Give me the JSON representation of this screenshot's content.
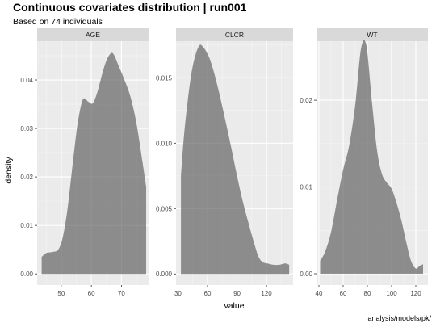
{
  "chart_data": {
    "type": "area",
    "title": "Continuous covariates distribution | run001",
    "subtitle": "Based on 74 individuals",
    "xlabel": "value",
    "ylabel": "density",
    "caption": "analysis/models/pk/",
    "colors": {
      "panel_bg": "#ebebeb",
      "grid_major": "#ffffff",
      "grid_minor": "#f5f5f5",
      "strip_bg": "#d9d9d9",
      "area_fill": "#595959",
      "area_opacity": 0.65
    },
    "facets": [
      {
        "name": "AGE",
        "xlim": [
          42,
          79
        ],
        "ylim": [
          -0.0023,
          0.048
        ],
        "xticks": [
          50,
          60,
          70
        ],
        "xtick_labels": [
          "50",
          "60",
          "70"
        ],
        "yticks": [
          0,
          0.01,
          0.02,
          0.03,
          0.04
        ],
        "ytick_labels": [
          "0.00",
          "0.01",
          "0.02",
          "0.03",
          "0.04"
        ],
        "x": [
          43.5,
          45,
          47,
          49,
          50.5,
          52,
          53.5,
          55,
          56,
          57,
          57.8,
          59,
          60.5,
          62,
          63.5,
          65,
          66.5,
          67.5,
          69,
          71,
          73,
          75,
          77,
          78.2
        ],
        "y": [
          0.0035,
          0.0043,
          0.0045,
          0.005,
          0.0075,
          0.013,
          0.021,
          0.029,
          0.033,
          0.0357,
          0.0362,
          0.0355,
          0.0352,
          0.0375,
          0.041,
          0.044,
          0.0455,
          0.0452,
          0.043,
          0.04,
          0.0365,
          0.031,
          0.023,
          0.018
        ]
      },
      {
        "name": "CLCR",
        "xlim": [
          28,
          147
        ],
        "ylim": [
          -0.00085,
          0.0178
        ],
        "xticks": [
          30,
          60,
          90,
          120
        ],
        "xtick_labels": [
          "30",
          "60",
          "90",
          "120"
        ],
        "yticks": [
          0,
          0.005,
          0.01,
          0.015
        ],
        "ytick_labels": [
          "0.000",
          "0.005",
          "0.010",
          "0.015"
        ],
        "x": [
          33,
          36,
          40,
          44,
          48,
          52,
          55,
          58,
          62,
          67,
          72,
          78,
          84,
          90,
          96,
          102,
          108,
          112,
          116,
          121,
          127,
          133,
          139,
          143
        ],
        "y": [
          0.0075,
          0.0105,
          0.0133,
          0.0155,
          0.0168,
          0.0175,
          0.0174,
          0.0171,
          0.0165,
          0.0153,
          0.0138,
          0.0118,
          0.0097,
          0.0075,
          0.0055,
          0.0038,
          0.0022,
          0.0013,
          0.0009,
          0.0008,
          0.0007,
          0.0007,
          0.0008,
          0.0007
        ]
      },
      {
        "name": "WT",
        "xlim": [
          38,
          130
        ],
        "ylim": [
          -0.0013,
          0.0268
        ],
        "xticks": [
          40,
          60,
          80,
          100,
          120
        ],
        "xtick_labels": [
          "40",
          "60",
          "80",
          "100",
          "120"
        ],
        "yticks": [
          0,
          0.01,
          0.02
        ],
        "ytick_labels": [
          "0.00",
          "0.01",
          "0.02"
        ],
        "x": [
          41,
          45,
          50,
          55,
          60,
          65,
          70,
          74,
          76.5,
          78,
          80,
          84,
          88,
          92,
          96,
          100,
          104,
          108,
          112,
          116,
          120,
          123,
          126
        ],
        "y": [
          0.0015,
          0.0025,
          0.0048,
          0.0085,
          0.012,
          0.0148,
          0.0195,
          0.0252,
          0.0268,
          0.0268,
          0.0255,
          0.0195,
          0.0142,
          0.0115,
          0.0105,
          0.0098,
          0.0082,
          0.0062,
          0.0037,
          0.0015,
          0.0006,
          0.0009,
          0.0011
        ]
      }
    ]
  }
}
